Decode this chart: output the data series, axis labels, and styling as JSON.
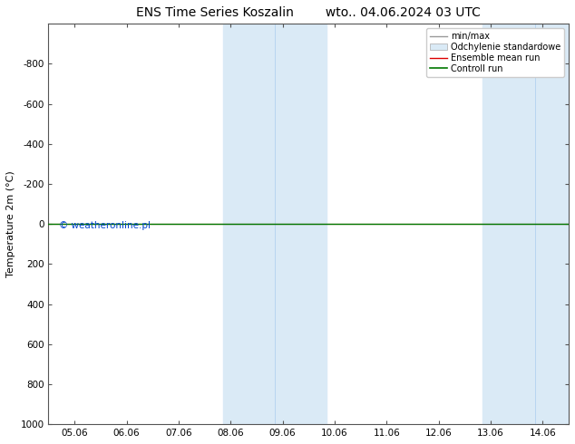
{
  "title_left": "ENS Time Series Koszalin",
  "title_right": "wto.. 04.06.2024 03 UTC",
  "ylabel": "Temperature 2m (°C)",
  "ylim_bottom": 1000,
  "ylim_top": -1000,
  "yticks": [
    -800,
    -600,
    -400,
    -200,
    0,
    200,
    400,
    600,
    800,
    1000
  ],
  "xtick_labels": [
    "05.06",
    "06.06",
    "07.06",
    "08.06",
    "09.06",
    "10.06",
    "11.06",
    "12.06",
    "13.06",
    "14.06"
  ],
  "xtick_positions": [
    0,
    1,
    2,
    3,
    4,
    5,
    6,
    7,
    8,
    9
  ],
  "shaded_bands": [
    [
      2.85,
      3.85
    ],
    [
      3.85,
      4.85
    ],
    [
      7.85,
      8.85
    ],
    [
      8.85,
      9.5
    ]
  ],
  "shade_color": "#daeaf6",
  "shade_color2": "#c8dff2",
  "control_run_y": 0,
  "ensemble_mean_y": 0,
  "watermark": "© weatheronline.pl",
  "legend_entries": [
    "min/max",
    "Odchylenie standardowe",
    "Ensemble mean run",
    "Controll run"
  ],
  "background_color": "#ffffff",
  "plot_bg_color": "#ffffff",
  "title_fontsize": 10,
  "tick_fontsize": 7.5,
  "ylabel_fontsize": 8,
  "watermark_fontsize": 7.5,
  "control_run_color": "#007700",
  "ensemble_mean_color": "#dd0000",
  "minmax_color": "#999999",
  "std_color": "#cccccc",
  "x_min": -0.5,
  "x_max": 9.5
}
